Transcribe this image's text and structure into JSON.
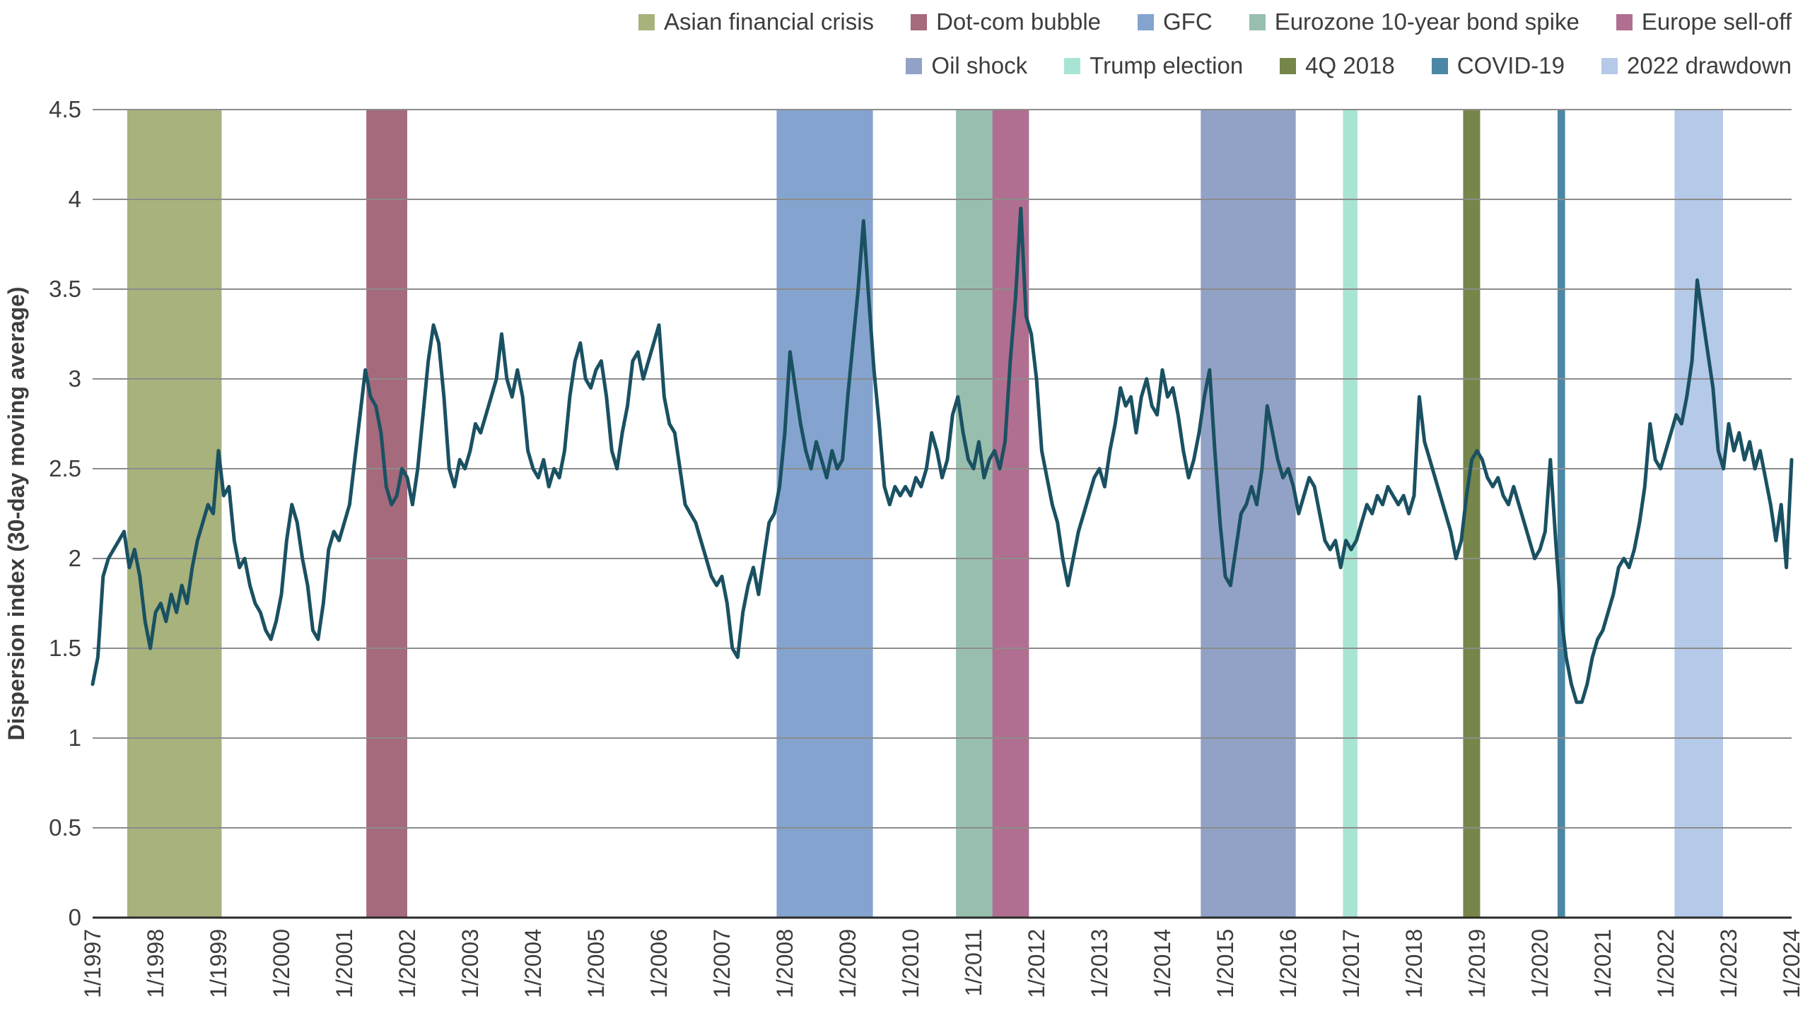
{
  "figure": {
    "background": "#ffffff",
    "text_color": "#3d3d3d",
    "gridline_color": "#8c8c8c",
    "baseline_color": "#2b2b2b"
  },
  "chart_data": {
    "type": "line",
    "title": "",
    "xlabel": "",
    "ylabel": "Dispersion index (30-day moving average)",
    "ylim": [
      0,
      4.5
    ],
    "grid": true,
    "legend_position": "top-right, two rows",
    "line_color": "#1a5162",
    "x_domain": [
      1997,
      2024
    ],
    "x_tick_labels": [
      "1/1997",
      "1/1998",
      "1/1999",
      "1/2000",
      "1/2001",
      "1/2002",
      "1/2003",
      "1/2004",
      "1/2005",
      "1/2006",
      "1/2007",
      "1/2008",
      "1/2009",
      "1/2010",
      "1/2011",
      "1/2012",
      "1/2013",
      "1/2014",
      "1/2015",
      "1/2016",
      "1/2017",
      "1/2018",
      "1/2019",
      "1/2020",
      "1/2021",
      "1/2022",
      "1/2023",
      "1/2024"
    ],
    "y_ticks": [
      0,
      0.5,
      1,
      1.5,
      2,
      2.5,
      3,
      3.5,
      4,
      4.5
    ],
    "y_tick_labels": [
      "0",
      "0.5",
      "1",
      "1.5",
      "2",
      "2.5",
      "3",
      "3.5",
      "4",
      "4.5"
    ],
    "series": [
      {
        "name": "Dispersion index (30-day moving average)",
        "start": "1/1997",
        "interval": "monthly",
        "values": [
          1.3,
          1.45,
          1.9,
          2.0,
          2.05,
          2.1,
          2.15,
          1.95,
          2.05,
          1.9,
          1.65,
          1.5,
          1.7,
          1.75,
          1.65,
          1.8,
          1.7,
          1.85,
          1.75,
          1.95,
          2.1,
          2.2,
          2.3,
          2.25,
          2.6,
          2.35,
          2.4,
          2.1,
          1.95,
          2.0,
          1.85,
          1.75,
          1.7,
          1.6,
          1.55,
          1.65,
          1.8,
          2.1,
          2.3,
          2.2,
          2.0,
          1.85,
          1.6,
          1.55,
          1.75,
          2.05,
          2.15,
          2.1,
          2.2,
          2.3,
          2.55,
          2.8,
          3.05,
          2.9,
          2.85,
          2.7,
          2.4,
          2.3,
          2.35,
          2.5,
          2.45,
          2.3,
          2.5,
          2.8,
          3.1,
          3.3,
          3.2,
          2.9,
          2.5,
          2.4,
          2.55,
          2.5,
          2.6,
          2.75,
          2.7,
          2.8,
          2.9,
          3.0,
          3.25,
          3.0,
          2.9,
          3.05,
          2.9,
          2.6,
          2.5,
          2.45,
          2.55,
          2.4,
          2.5,
          2.45,
          2.6,
          2.9,
          3.1,
          3.2,
          3.0,
          2.95,
          3.05,
          3.1,
          2.9,
          2.6,
          2.5,
          2.7,
          2.85,
          3.1,
          3.15,
          3.0,
          3.1,
          3.2,
          3.3,
          2.9,
          2.75,
          2.7,
          2.5,
          2.3,
          2.25,
          2.2,
          2.1,
          2.0,
          1.9,
          1.85,
          1.9,
          1.75,
          1.5,
          1.45,
          1.7,
          1.85,
          1.95,
          1.8,
          2.0,
          2.2,
          2.25,
          2.4,
          2.7,
          3.15,
          2.95,
          2.75,
          2.6,
          2.5,
          2.65,
          2.55,
          2.45,
          2.6,
          2.5,
          2.55,
          2.9,
          3.2,
          3.5,
          3.88,
          3.45,
          3.05,
          2.75,
          2.4,
          2.3,
          2.4,
          2.35,
          2.4,
          2.35,
          2.45,
          2.4,
          2.5,
          2.7,
          2.6,
          2.45,
          2.55,
          2.8,
          2.9,
          2.7,
          2.55,
          2.5,
          2.65,
          2.45,
          2.55,
          2.6,
          2.5,
          2.65,
          3.1,
          3.45,
          3.95,
          3.35,
          3.25,
          3.0,
          2.6,
          2.45,
          2.3,
          2.2,
          2.0,
          1.85,
          2.0,
          2.15,
          2.25,
          2.35,
          2.45,
          2.5,
          2.4,
          2.6,
          2.75,
          2.95,
          2.85,
          2.9,
          2.7,
          2.9,
          3.0,
          2.85,
          2.8,
          3.05,
          2.9,
          2.95,
          2.8,
          2.6,
          2.45,
          2.55,
          2.7,
          2.9,
          3.05,
          2.6,
          2.2,
          1.9,
          1.85,
          2.05,
          2.25,
          2.3,
          2.4,
          2.3,
          2.5,
          2.85,
          2.7,
          2.55,
          2.45,
          2.5,
          2.4,
          2.25,
          2.35,
          2.45,
          2.4,
          2.25,
          2.1,
          2.05,
          2.1,
          1.95,
          2.1,
          2.05,
          2.1,
          2.2,
          2.3,
          2.25,
          2.35,
          2.3,
          2.4,
          2.35,
          2.3,
          2.35,
          2.25,
          2.35,
          2.9,
          2.65,
          2.55,
          2.45,
          2.35,
          2.25,
          2.15,
          2.0,
          2.1,
          2.35,
          2.55,
          2.6,
          2.55,
          2.45,
          2.4,
          2.45,
          2.35,
          2.3,
          2.4,
          2.3,
          2.2,
          2.1,
          2.0,
          2.05,
          2.15,
          2.55,
          2.1,
          1.7,
          1.45,
          1.3,
          1.2,
          1.2,
          1.3,
          1.45,
          1.55,
          1.6,
          1.7,
          1.8,
          1.95,
          2.0,
          1.95,
          2.05,
          2.2,
          2.4,
          2.75,
          2.55,
          2.5,
          2.6,
          2.7,
          2.8,
          2.75,
          2.9,
          3.1,
          3.55,
          3.35,
          3.15,
          2.95,
          2.6,
          2.5,
          2.75,
          2.6,
          2.7,
          2.55,
          2.65,
          2.5,
          2.6,
          2.45,
          2.3,
          2.1,
          2.3,
          1.95,
          2.55
        ]
      }
    ],
    "events": [
      {
        "label": "Asian financial crisis",
        "color": "#a7b27c",
        "start": 1997.55,
        "end": 1999.05
      },
      {
        "label": "Dot-com bubble",
        "color": "#a66a7d",
        "start": 2001.35,
        "end": 2002.0
      },
      {
        "label": "GFC",
        "color": "#84a4cf",
        "start": 2007.87,
        "end": 2009.4
      },
      {
        "label": "Eurozone 10-year bond spike",
        "color": "#98bfae",
        "start": 2010.72,
        "end": 2011.33
      },
      {
        "label": "Europe sell-off",
        "color": "#b06f90",
        "start": 2011.3,
        "end": 2011.88
      },
      {
        "label": "Oil shock",
        "color": "#92a2c6",
        "start": 2014.61,
        "end": 2016.12
      },
      {
        "label": "Trump election",
        "color": "#a8e4d4",
        "start": 2016.87,
        "end": 2017.1
      },
      {
        "label": "4Q 2018",
        "color": "#76864a",
        "start": 2018.78,
        "end": 2019.05
      },
      {
        "label": "COVID-19",
        "color": "#4c87a5",
        "start": 2020.28,
        "end": 2020.4
      },
      {
        "label": "2022 drawdown",
        "color": "#b5c9e8",
        "start": 2022.14,
        "end": 2022.91
      }
    ],
    "legend_rows": [
      [
        0,
        1,
        2,
        3,
        4
      ],
      [
        5,
        6,
        7,
        8,
        9
      ]
    ]
  }
}
